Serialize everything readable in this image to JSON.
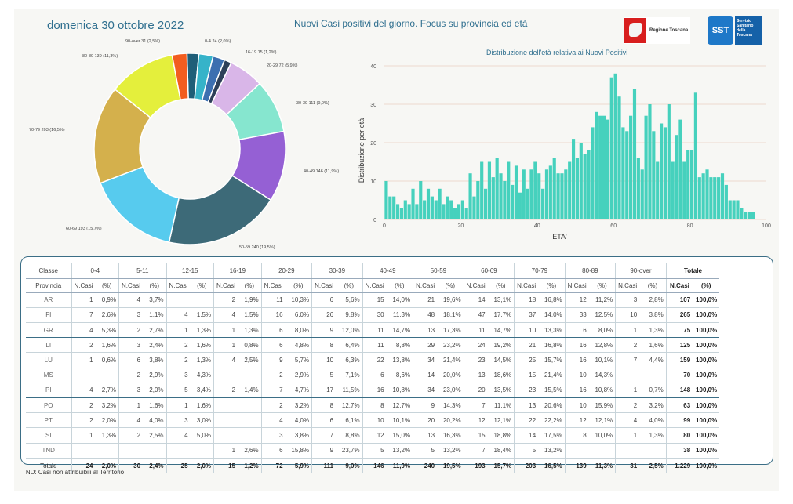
{
  "header": {
    "date": "domenica 30 ottobre 2022",
    "title": "Nuovi Casi positivi del giorno. Focus su provincia ed età",
    "logo_rt": "Regione Toscana",
    "logo_sst_badge": "SST",
    "logo_sst_text": "Servizio Sanitario della Toscana"
  },
  "donut": {
    "slices": [
      {
        "label": "0-4 24 (2,0%)",
        "value": 2.0,
        "color": "#1f5e78"
      },
      {
        "label": "5-11 30 (2,4%)",
        "value": 2.4,
        "color": "#36b3c9"
      },
      {
        "label": "12-15 25 (2,0%)",
        "value": 2.0,
        "color": "#3c6fb0"
      },
      {
        "label": "16-19 15 (1,2%)",
        "value": 1.2,
        "color": "#2d3f58"
      },
      {
        "label": "20-29 72 (5,9%)",
        "value": 5.9,
        "color": "#d9b6e8"
      },
      {
        "label": "30-39 111 (9,0%)",
        "value": 9.0,
        "color": "#86e6cf"
      },
      {
        "label": "40-49 146 (11,9%)",
        "value": 11.9,
        "color": "#9560d4"
      },
      {
        "label": "50-59 240 (19,5%)",
        "value": 19.5,
        "color": "#3d6a78"
      },
      {
        "label": "60-69 193 (15,7%)",
        "value": 15.7,
        "color": "#57cbee"
      },
      {
        "label": "70-79 203 (16,5%)",
        "value": 16.5,
        "color": "#d4b04c"
      },
      {
        "label": "80-89 139 (11,3%)",
        "value": 11.3,
        "color": "#e4ef3c"
      },
      {
        "label": "90-over 31 (2,5%)",
        "value": 2.5,
        "color": "#f25d1f"
      }
    ],
    "extra_slice_color": "#8fd14f"
  },
  "chart_data": {
    "type": "bar",
    "title": "Distribuzione dell'età relativa ai Nuovi Positivi",
    "xlabel": "ETA'",
    "ylabel": "Distribuzione per età",
    "xlim": [
      0,
      100
    ],
    "ylim": [
      0,
      40
    ],
    "xticks": [
      "0",
      "20",
      "40",
      "60",
      "80",
      "100"
    ],
    "yticks": [
      "0",
      "10",
      "20",
      "30",
      "40"
    ],
    "x": [
      0,
      1,
      2,
      3,
      4,
      5,
      6,
      7,
      8,
      9,
      10,
      11,
      12,
      13,
      14,
      15,
      16,
      17,
      18,
      19,
      20,
      21,
      22,
      23,
      24,
      25,
      26,
      27,
      28,
      29,
      30,
      31,
      32,
      33,
      34,
      35,
      36,
      37,
      38,
      39,
      40,
      41,
      42,
      43,
      44,
      45,
      46,
      47,
      48,
      49,
      50,
      51,
      52,
      53,
      54,
      55,
      56,
      57,
      58,
      59,
      60,
      61,
      62,
      63,
      64,
      65,
      66,
      67,
      68,
      69,
      70,
      71,
      72,
      73,
      74,
      75,
      76,
      77,
      78,
      79,
      80,
      81,
      82,
      83,
      84,
      85,
      86,
      87,
      88,
      89,
      90,
      91,
      92,
      93,
      94,
      95,
      96,
      97,
      98,
      99,
      100
    ],
    "values": [
      10,
      6,
      6,
      4,
      3,
      5,
      4,
      8,
      4,
      10,
      5,
      8,
      6,
      5,
      8,
      4,
      6,
      5,
      3,
      4,
      5,
      3,
      12,
      6,
      10,
      15,
      8,
      15,
      11,
      16,
      12,
      10,
      15,
      9,
      14,
      7,
      13,
      8,
      13,
      15,
      12,
      8,
      13,
      14,
      16,
      12,
      12,
      13,
      15,
      21,
      16,
      20,
      17,
      18,
      24,
      28,
      27,
      27,
      26,
      37,
      38,
      32,
      24,
      23,
      27,
      34,
      16,
      13,
      27,
      30,
      23,
      15,
      25,
      24,
      30,
      15,
      22,
      26,
      15,
      18,
      18,
      33,
      11,
      12,
      13,
      11,
      11,
      11,
      12,
      9,
      5,
      5,
      5,
      3,
      2,
      2,
      2,
      0,
      0,
      0,
      0
    ]
  },
  "table": {
    "col_groups": [
      "Classe",
      "0-4",
      "5-11",
      "12-15",
      "16-19",
      "20-29",
      "30-39",
      "40-49",
      "50-59",
      "60-69",
      "70-79",
      "80-89",
      "90-over",
      "Totale"
    ],
    "subheader": [
      "Provincia",
      "N.Casi",
      "(%)",
      "N.Casi",
      "(%)",
      "N.Casi",
      "(%)",
      "N.Casi",
      "(%)",
      "N.Casi",
      "(%)",
      "N.Casi",
      "(%)",
      "N.Casi",
      "(%)",
      "N.Casi",
      "(%)",
      "N.Casi",
      "(%)",
      "N.Casi",
      "(%)",
      "N.Casi",
      "(%)",
      "N.Casi",
      "(%)",
      "N.Casi",
      "(%)"
    ],
    "rows": [
      [
        "AR",
        "1",
        "0,9%",
        "4",
        "3,7%",
        "",
        "",
        "2",
        "1,9%",
        "11",
        "10,3%",
        "6",
        "5,6%",
        "15",
        "14,0%",
        "21",
        "19,6%",
        "14",
        "13,1%",
        "18",
        "16,8%",
        "12",
        "11,2%",
        "3",
        "2,8%",
        "107",
        "100,0%"
      ],
      [
        "FI",
        "7",
        "2,6%",
        "3",
        "1,1%",
        "4",
        "1,5%",
        "4",
        "1,5%",
        "16",
        "6,0%",
        "26",
        "9,8%",
        "30",
        "11,3%",
        "48",
        "18,1%",
        "47",
        "17,7%",
        "37",
        "14,0%",
        "33",
        "12,5%",
        "10",
        "3,8%",
        "265",
        "100,0%"
      ],
      [
        "GR",
        "4",
        "5,3%",
        "2",
        "2,7%",
        "1",
        "1,3%",
        "1",
        "1,3%",
        "6",
        "8,0%",
        "9",
        "12,0%",
        "11",
        "14,7%",
        "13",
        "17,3%",
        "11",
        "14,7%",
        "10",
        "13,3%",
        "6",
        "8,0%",
        "1",
        "1,3%",
        "75",
        "100,0%"
      ],
      [
        "LI",
        "2",
        "1,6%",
        "3",
        "2,4%",
        "2",
        "1,6%",
        "1",
        "0,8%",
        "6",
        "4,8%",
        "8",
        "6,4%",
        "11",
        "8,8%",
        "29",
        "23,2%",
        "24",
        "19,2%",
        "21",
        "16,8%",
        "16",
        "12,8%",
        "2",
        "1,6%",
        "125",
        "100,0%"
      ],
      [
        "LU",
        "1",
        "0,6%",
        "6",
        "3,8%",
        "2",
        "1,3%",
        "4",
        "2,5%",
        "9",
        "5,7%",
        "10",
        "6,3%",
        "22",
        "13,8%",
        "34",
        "21,4%",
        "23",
        "14,5%",
        "25",
        "15,7%",
        "16",
        "10,1%",
        "7",
        "4,4%",
        "159",
        "100,0%"
      ],
      [
        "MS",
        "",
        "",
        "2",
        "2,9%",
        "3",
        "4,3%",
        "",
        "",
        "2",
        "2,9%",
        "5",
        "7,1%",
        "6",
        "8,6%",
        "14",
        "20,0%",
        "13",
        "18,6%",
        "15",
        "21,4%",
        "10",
        "14,3%",
        "",
        "",
        "70",
        "100,0%"
      ],
      [
        "PI",
        "4",
        "2,7%",
        "3",
        "2,0%",
        "5",
        "3,4%",
        "2",
        "1,4%",
        "7",
        "4,7%",
        "17",
        "11,5%",
        "16",
        "10,8%",
        "34",
        "23,0%",
        "20",
        "13,5%",
        "23",
        "15,5%",
        "16",
        "10,8%",
        "1",
        "0,7%",
        "148",
        "100,0%"
      ],
      [
        "PO",
        "2",
        "3,2%",
        "1",
        "1,6%",
        "1",
        "1,6%",
        "",
        "",
        "2",
        "3,2%",
        "8",
        "12,7%",
        "8",
        "12,7%",
        "9",
        "14,3%",
        "7",
        "11,1%",
        "13",
        "20,6%",
        "10",
        "15,9%",
        "2",
        "3,2%",
        "63",
        "100,0%"
      ],
      [
        "PT",
        "2",
        "2,0%",
        "4",
        "4,0%",
        "3",
        "3,0%",
        "",
        "",
        "4",
        "4,0%",
        "6",
        "6,1%",
        "10",
        "10,1%",
        "20",
        "20,2%",
        "12",
        "12,1%",
        "22",
        "22,2%",
        "12",
        "12,1%",
        "4",
        "4,0%",
        "99",
        "100,0%"
      ],
      [
        "SI",
        "1",
        "1,3%",
        "2",
        "2,5%",
        "4",
        "5,0%",
        "",
        "",
        "3",
        "3,8%",
        "7",
        "8,8%",
        "12",
        "15,0%",
        "13",
        "16,3%",
        "15",
        "18,8%",
        "14",
        "17,5%",
        "8",
        "10,0%",
        "1",
        "1,3%",
        "80",
        "100,0%"
      ],
      [
        "TND",
        "",
        "",
        "",
        "",
        "",
        "",
        "1",
        "2,6%",
        "6",
        "15,8%",
        "9",
        "23,7%",
        "5",
        "13,2%",
        "5",
        "13,2%",
        "7",
        "18,4%",
        "5",
        "13,2%",
        "",
        "",
        "",
        "",
        "38",
        "100,0%"
      ]
    ],
    "total": [
      "Totale",
      "24",
      "2,0%",
      "30",
      "2,4%",
      "25",
      "2,0%",
      "15",
      "1,2%",
      "72",
      "5,9%",
      "111",
      "9,0%",
      "146",
      "11,9%",
      "240",
      "19,5%",
      "193",
      "15,7%",
      "203",
      "16,5%",
      "139",
      "11,3%",
      "31",
      "2,5%",
      "1.229",
      "100,0%"
    ]
  },
  "footnote": "TND: Casi non attribuibili al Territorio"
}
